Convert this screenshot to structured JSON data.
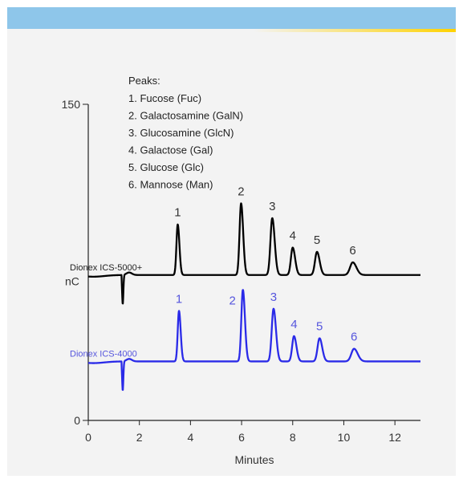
{
  "colors": {
    "banner": "#8ec6ea",
    "stripe_start": "#f3f3f3",
    "stripe_end": "#ffd200",
    "panel": "#f3f3f3",
    "axis": "#222222",
    "series_1": "#000000",
    "series_2": "#2a2ae8",
    "series_2_text": "#5555dd"
  },
  "legend": {
    "title": "Peaks:",
    "items": [
      "1. Fucose (Fuc)",
      "2. Galactosamine (GalN)",
      "3. Glucosamine (GlcN)",
      "4. Galactose (Gal)",
      "5. Glucose (Glc)",
      "6. Mannose (Man)"
    ]
  },
  "chart_data": {
    "type": "line",
    "xlabel": "Minutes",
    "ylabel": "nC",
    "xlim": [
      0,
      13
    ],
    "ylim": [
      0,
      150
    ],
    "x_ticks": [
      "0",
      "2",
      "4",
      "6",
      "8",
      "10",
      "12"
    ],
    "y_ticks": [
      "0",
      "150"
    ],
    "series": [
      {
        "name": "Dionex ICS-5000+",
        "baseline": 69,
        "dip": {
          "x": 1.35,
          "depth": 14
        },
        "peaks": [
          {
            "label": "1",
            "x": 3.5,
            "height": 24,
            "width": 0.07
          },
          {
            "label": "2",
            "x": 5.98,
            "height": 34,
            "width": 0.085
          },
          {
            "label": "3",
            "x": 7.2,
            "height": 27,
            "width": 0.1
          },
          {
            "label": "4",
            "x": 8.0,
            "height": 13,
            "width": 0.1
          },
          {
            "label": "5",
            "x": 8.95,
            "height": 11,
            "width": 0.11
          },
          {
            "label": "6",
            "x": 10.35,
            "height": 6,
            "width": 0.15
          }
        ]
      },
      {
        "name": "Dionex ICS-4000",
        "baseline": 28,
        "dip": {
          "x": 1.35,
          "depth": 14
        },
        "peaks": [
          {
            "label": "1",
            "x": 3.55,
            "height": 24,
            "width": 0.07
          },
          {
            "label": "2",
            "x": 6.05,
            "height": 34,
            "width": 0.085
          },
          {
            "label": "3",
            "x": 7.25,
            "height": 25,
            "width": 0.1
          },
          {
            "label": "4",
            "x": 8.05,
            "height": 12,
            "width": 0.1
          },
          {
            "label": "5",
            "x": 9.05,
            "height": 11,
            "width": 0.11
          },
          {
            "label": "6",
            "x": 10.4,
            "height": 6,
            "width": 0.15
          }
        ]
      }
    ]
  }
}
